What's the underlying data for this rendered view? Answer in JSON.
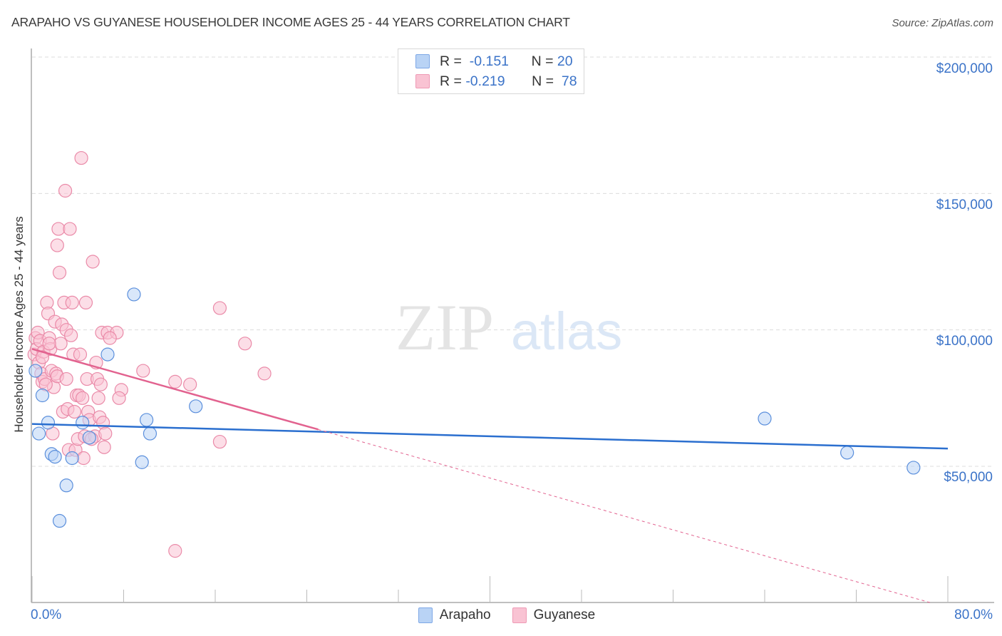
{
  "header": {
    "title": "ARAPAHO VS GUYANESE HOUSEHOLDER INCOME AGES 25 - 44 YEARS CORRELATION CHART",
    "source": "Source: ZipAtlas.com"
  },
  "watermark": {
    "zip": "ZIP",
    "atlas": "atlas"
  },
  "legend_top": {
    "rows": [
      {
        "series": "Arapaho",
        "r_label": "R =",
        "r_value": "-0.151",
        "n_label": "N =",
        "n_value": "20"
      },
      {
        "series": "Guyanese",
        "r_label": "R =",
        "r_value": "-0.219",
        "n_label": "N =",
        "n_value": "78"
      }
    ]
  },
  "legend_bottom": {
    "items": [
      {
        "label": "Arapaho"
      },
      {
        "label": "Guyanese"
      }
    ]
  },
  "axes": {
    "ylabel": "Householder Income Ages 25 - 44 years",
    "yticks": [
      "$200,000",
      "$150,000",
      "$100,000",
      "$50,000"
    ],
    "xticks": [
      "0.0%",
      "80.0%"
    ]
  },
  "colors": {
    "arapaho_fill": "#b9d3f5",
    "arapaho_stroke": "#5b8fdc",
    "arapaho_line": "#2b6fcf",
    "guyanese_fill": "#f9c3d3",
    "guyanese_stroke": "#ea8aa8",
    "guyanese_line": "#e2628f",
    "tick_text": "#3b73c8"
  },
  "chart_data": {
    "type": "scatter",
    "title": "ARAPAHO VS GUYANESE HOUSEHOLDER INCOME AGES 25 - 44 YEARS CORRELATION CHART",
    "xlabel": "",
    "ylabel": "Householder Income Ages 25 - 44 years",
    "xlim": [
      0,
      80
    ],
    "ylim": [
      0,
      210000
    ],
    "x_tick_labels": [
      "0.0%",
      "80.0%"
    ],
    "y_tick_labels": [
      "$50,000",
      "$100,000",
      "$150,000",
      "$200,000"
    ],
    "grid": true,
    "legend_position": "top-center",
    "series": [
      {
        "name": "Arapaho",
        "R": -0.151,
        "N": 20,
        "trend": {
          "x": [
            0,
            80
          ],
          "y": [
            65500,
            56500
          ]
        },
        "points": [
          [
            0.3,
            85000
          ],
          [
            0.6,
            62000
          ],
          [
            0.9,
            76000
          ],
          [
            1.4,
            66000
          ],
          [
            1.7,
            54500
          ],
          [
            2.0,
            53500
          ],
          [
            2.4,
            30000
          ],
          [
            3.5,
            53000
          ],
          [
            3.0,
            43000
          ],
          [
            4.4,
            66000
          ],
          [
            5.0,
            60500
          ],
          [
            6.6,
            91000
          ],
          [
            8.9,
            113000
          ],
          [
            9.6,
            51500
          ],
          [
            10.0,
            67000
          ],
          [
            10.3,
            62000
          ],
          [
            14.3,
            72000
          ],
          [
            64.0,
            67500
          ],
          [
            71.2,
            55000
          ],
          [
            77.0,
            49500
          ]
        ]
      },
      {
        "name": "Guyanese",
        "R": -0.219,
        "N": 78,
        "trend_solid": {
          "x": [
            0,
            25
          ],
          "y": [
            93000,
            63500
          ]
        },
        "trend_dashed": {
          "x": [
            25,
            78.5
          ],
          "y": [
            63500,
            0
          ]
        },
        "points": [
          [
            0.2,
            91000
          ],
          [
            0.3,
            97000
          ],
          [
            0.4,
            93000
          ],
          [
            0.5,
            99000
          ],
          [
            0.6,
            88000
          ],
          [
            0.7,
            96000
          ],
          [
            0.8,
            84000
          ],
          [
            0.9,
            81000
          ],
          [
            1.0,
            92000
          ],
          [
            1.1,
            82000
          ],
          [
            1.3,
            110000
          ],
          [
            1.4,
            106000
          ],
          [
            1.5,
            97000
          ],
          [
            1.6,
            93000
          ],
          [
            1.7,
            85000
          ],
          [
            1.8,
            62000
          ],
          [
            1.9,
            79000
          ],
          [
            2.0,
            103000
          ],
          [
            2.1,
            84000
          ],
          [
            2.2,
            131000
          ],
          [
            2.3,
            137000
          ],
          [
            2.4,
            121000
          ],
          [
            2.5,
            95000
          ],
          [
            2.6,
            102000
          ],
          [
            2.7,
            70000
          ],
          [
            2.8,
            110000
          ],
          [
            2.9,
            151000
          ],
          [
            3.0,
            100000
          ],
          [
            3.1,
            71000
          ],
          [
            3.2,
            56000
          ],
          [
            3.3,
            137000
          ],
          [
            3.4,
            98000
          ],
          [
            3.5,
            110000
          ],
          [
            3.6,
            91000
          ],
          [
            3.7,
            70000
          ],
          [
            3.8,
            56000
          ],
          [
            3.9,
            76000
          ],
          [
            4.0,
            60000
          ],
          [
            4.1,
            76000
          ],
          [
            4.2,
            91000
          ],
          [
            4.3,
            163000
          ],
          [
            4.4,
            75000
          ],
          [
            4.5,
            53000
          ],
          [
            4.6,
            61000
          ],
          [
            4.7,
            110000
          ],
          [
            4.8,
            82000
          ],
          [
            4.9,
            70000
          ],
          [
            5.0,
            67000
          ],
          [
            5.3,
            125000
          ],
          [
            5.5,
            61000
          ],
          [
            5.6,
            88000
          ],
          [
            5.7,
            82000
          ],
          [
            5.8,
            75000
          ],
          [
            5.9,
            68000
          ],
          [
            6.0,
            80000
          ],
          [
            6.1,
            99000
          ],
          [
            6.2,
            66000
          ],
          [
            6.3,
            57000
          ],
          [
            6.4,
            62000
          ],
          [
            6.6,
            99000
          ],
          [
            7.4,
            99000
          ],
          [
            7.8,
            78000
          ],
          [
            7.6,
            75000
          ],
          [
            9.7,
            85000
          ],
          [
            12.5,
            81000
          ],
          [
            12.5,
            19000
          ],
          [
            13.8,
            80000
          ],
          [
            16.4,
            108000
          ],
          [
            16.4,
            59000
          ],
          [
            18.6,
            95000
          ],
          [
            20.3,
            84000
          ],
          [
            1.2,
            80000
          ],
          [
            2.2,
            83000
          ],
          [
            0.9,
            90000
          ],
          [
            1.5,
            95000
          ],
          [
            3.0,
            82000
          ],
          [
            5.2,
            60000
          ],
          [
            6.8,
            97000
          ]
        ]
      }
    ]
  }
}
